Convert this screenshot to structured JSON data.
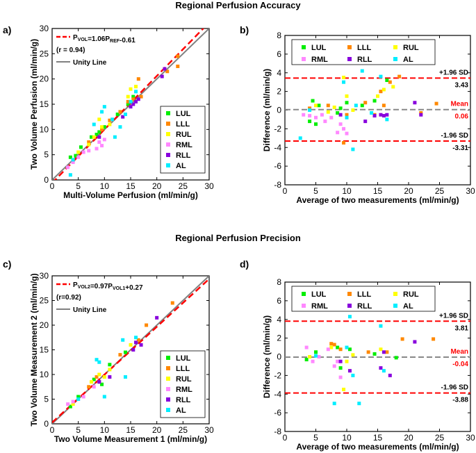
{
  "titles": {
    "accuracy": "Regional Perfusion Accuracy",
    "precision": "Regional Perfusion Precision"
  },
  "colors": {
    "LUL": "#00ee00",
    "LLL": "#ff8800",
    "RUL": "#ffff00",
    "RML": "#ff88ff",
    "RLL": "#8800dd",
    "AL": "#00eeff",
    "fit": "#ff0000",
    "unity": "#808080",
    "mean": "#888888",
    "limit": "#ff0000"
  },
  "chart_data": [
    {
      "id": "a",
      "panel_label": "a)",
      "type": "scatter",
      "xlabel": "Multi-Volume Perfusion (ml/min/g)",
      "ylabel": "Two Volume Perfusion (ml/min/g)",
      "xlim": [
        0,
        30
      ],
      "ylim": [
        0,
        30
      ],
      "xticks": [
        0,
        5,
        10,
        15,
        20,
        25,
        30
      ],
      "yticks": [
        0,
        5,
        10,
        15,
        20,
        25,
        30
      ],
      "fit": {
        "slope": 1.06,
        "intercept": -0.61,
        "label_lead": "P",
        "label_sub1": "VOL",
        "label_mid": "=1.06P",
        "label_sub2": "REF",
        "label_tail": "-0.61",
        "r_label": "(r = 0.94)"
      },
      "unity_label": "Unity Line",
      "legend": [
        "LUL",
        "LLL",
        "RUL",
        "RML",
        "RLL",
        "AL"
      ],
      "series": [
        {
          "name": "LUL",
          "points": [
            [
              3.5,
              4.5
            ],
            [
              4.5,
              4.8
            ],
            [
              5.5,
              6.5
            ],
            [
              7.5,
              8.5
            ],
            [
              8.5,
              9.0
            ],
            [
              9.0,
              9.5
            ],
            [
              10.0,
              10.5
            ],
            [
              12.5,
              13.0
            ],
            [
              14.5,
              15.0
            ],
            [
              15.5,
              16.5
            ]
          ]
        },
        {
          "name": "LLL",
          "points": [
            [
              4.0,
              3.8
            ],
            [
              7.0,
              7.5
            ],
            [
              9.5,
              10.0
            ],
            [
              11.0,
              11.8
            ],
            [
              13.0,
              13.5
            ],
            [
              14.5,
              15.5
            ],
            [
              15.5,
              16.0
            ],
            [
              16.5,
              20.0
            ],
            [
              17.0,
              16.5
            ],
            [
              22.0,
              21.5
            ],
            [
              24.0,
              24.5
            ],
            [
              24.0,
              22.5
            ]
          ]
        },
        {
          "name": "RUL",
          "points": [
            [
              5.0,
              5.5
            ],
            [
              7.0,
              7.0
            ],
            [
              8.0,
              8.5
            ],
            [
              9.0,
              12.0
            ],
            [
              9.5,
              10.5
            ],
            [
              11.0,
              11.0
            ],
            [
              14.5,
              16.5
            ],
            [
              15.0,
              18.0
            ],
            [
              16.0,
              18.5
            ]
          ]
        },
        {
          "name": "RML",
          "points": [
            [
              3.0,
              2.5
            ],
            [
              4.0,
              3.5
            ],
            [
              5.0,
              4.5
            ],
            [
              6.0,
              5.5
            ],
            [
              7.0,
              5.8
            ],
            [
              8.5,
              6.2
            ],
            [
              9.0,
              7.5
            ],
            [
              9.5,
              6.8
            ],
            [
              10.0,
              8.0
            ]
          ]
        },
        {
          "name": "RLL",
          "points": [
            [
              9.0,
              8.5
            ],
            [
              13.5,
              12.5
            ],
            [
              15.0,
              14.5
            ],
            [
              15.5,
              15.0
            ],
            [
              16.0,
              15.5
            ],
            [
              16.5,
              16.0
            ],
            [
              21.0,
              20.5
            ],
            [
              21.5,
              22.0
            ]
          ]
        },
        {
          "name": "AL",
          "points": [
            [
              3.5,
              1.0
            ],
            [
              4.0,
              4.0
            ],
            [
              8.0,
              11.0
            ],
            [
              9.5,
              13.5
            ],
            [
              10.0,
              14.5
            ],
            [
              11.5,
              12.0
            ],
            [
              12.0,
              8.5
            ],
            [
              13.0,
              10.5
            ],
            [
              14.0,
              13.0
            ],
            [
              15.0,
              15.5
            ],
            [
              16.0,
              17.5
            ]
          ]
        }
      ]
    },
    {
      "id": "b",
      "panel_label": "b)",
      "type": "scatter",
      "xlabel": "Average of two measurements (ml/min/g)",
      "ylabel": "Difference (ml/min/g)",
      "xlim": [
        0,
        30
      ],
      "ylim": [
        -8,
        8
      ],
      "xticks": [
        0,
        5,
        10,
        15,
        20,
        25,
        30
      ],
      "yticks": [
        -8,
        -6,
        -4,
        -2,
        0,
        2,
        4,
        6,
        8
      ],
      "mean": 0.06,
      "upper": 3.43,
      "lower": -3.31,
      "upper_label": "+1.96 SD",
      "upper_value": "3.43",
      "mean_label": "Mean",
      "mean_value": "0.06",
      "lower_label": "-1.96 SD",
      "lower_value": "-3.31",
      "legend": [
        "LUL",
        "LLL",
        "RUL",
        "RML",
        "RLL",
        "AL"
      ],
      "series": [
        {
          "name": "LUL",
          "points": [
            [
              4.0,
              -1.2
            ],
            [
              4.5,
              1.0
            ],
            [
              5.0,
              -1.5
            ],
            [
              5.5,
              0.5
            ],
            [
              8.5,
              -0.3
            ],
            [
              9.0,
              0.2
            ],
            [
              10.0,
              0.8
            ],
            [
              12.5,
              0.5
            ],
            [
              14.5,
              1.0
            ],
            [
              16.5,
              3.2
            ]
          ]
        },
        {
          "name": "LLL",
          "points": [
            [
              4.0,
              0.2
            ],
            [
              7.0,
              0.5
            ],
            [
              9.5,
              -3.5
            ],
            [
              10.0,
              -0.5
            ],
            [
              13.0,
              0.8
            ],
            [
              14.5,
              -0.5
            ],
            [
              15.5,
              2.0
            ],
            [
              16.0,
              0.5
            ],
            [
              17.0,
              3.0
            ],
            [
              18.5,
              3.6
            ],
            [
              22.0,
              -0.3
            ],
            [
              24.5,
              0.7
            ]
          ]
        },
        {
          "name": "RUL",
          "points": [
            [
              5.0,
              0.5
            ],
            [
              7.0,
              -0.2
            ],
            [
              8.0,
              0.3
            ],
            [
              9.5,
              3.5
            ],
            [
              10.0,
              1.5
            ],
            [
              11.0,
              0.0
            ],
            [
              15.0,
              1.5
            ],
            [
              16.0,
              2.2
            ],
            [
              17.5,
              2.5
            ]
          ]
        },
        {
          "name": "RML",
          "points": [
            [
              3.0,
              -0.5
            ],
            [
              4.0,
              -0.6
            ],
            [
              5.0,
              -0.8
            ],
            [
              6.0,
              -0.5
            ],
            [
              6.5,
              -1.2
            ],
            [
              7.5,
              -0.8
            ],
            [
              8.5,
              -2.4
            ],
            [
              9.0,
              -1.5
            ],
            [
              9.5,
              -2.0
            ],
            [
              10.0,
              -2.5
            ]
          ]
        },
        {
          "name": "RLL",
          "points": [
            [
              9.0,
              -0.5
            ],
            [
              13.0,
              -1.2
            ],
            [
              14.5,
              -0.6
            ],
            [
              15.5,
              -0.5
            ],
            [
              16.0,
              -0.6
            ],
            [
              16.5,
              -0.5
            ],
            [
              21.0,
              0.8
            ],
            [
              22.0,
              -0.5
            ]
          ]
        },
        {
          "name": "AL",
          "points": [
            [
              2.5,
              -3.0
            ],
            [
              4.0,
              0.0
            ],
            [
              9.5,
              3.0
            ],
            [
              11.0,
              -4.2
            ],
            [
              11.5,
              0.5
            ],
            [
              12.5,
              4.2
            ],
            [
              14.0,
              -0.3
            ],
            [
              15.5,
              3.6
            ],
            [
              16.5,
              -1.0
            ],
            [
              10.0,
              -0.8
            ]
          ]
        }
      ]
    },
    {
      "id": "c",
      "panel_label": "c)",
      "type": "scatter",
      "xlabel": "Two Volume Measurement 1 (ml/min/g)",
      "ylabel": "Two Volume Measurement 2 (ml/min/g)",
      "xlim": [
        0,
        30
      ],
      "ylim": [
        0,
        30
      ],
      "xticks": [
        0,
        5,
        10,
        15,
        20,
        25,
        30
      ],
      "yticks": [
        0,
        5,
        10,
        15,
        20,
        25,
        30
      ],
      "fit": {
        "slope": 0.97,
        "intercept": 0.27,
        "label_lead": "P",
        "label_sub1": "VOL2",
        "label_mid": "=0.97P",
        "label_sub2": "VOL1",
        "label_tail": "+0.27",
        "r_label": "(r=0.92)"
      },
      "unity_label": "Unity Line",
      "legend": [
        "LUL",
        "LLL",
        "RUL",
        "RML",
        "RLL",
        "AL"
      ],
      "series": [
        {
          "name": "LUL",
          "points": [
            [
              3.5,
              3.5
            ],
            [
              5.0,
              5.5
            ],
            [
              8.0,
              9.0
            ],
            [
              9.0,
              8.5
            ],
            [
              9.5,
              8.0
            ],
            [
              11.0,
              12.0
            ],
            [
              14.0,
              14.5
            ]
          ]
        },
        {
          "name": "LLL",
          "points": [
            [
              7.0,
              7.5
            ],
            [
              8.5,
              9.5
            ],
            [
              13.0,
              14.0
            ],
            [
              16.5,
              17.0
            ],
            [
              18.0,
              20.0
            ],
            [
              23.0,
              24.5
            ]
          ]
        },
        {
          "name": "RUL",
          "points": [
            [
              4.0,
              4.0
            ],
            [
              7.5,
              8.5
            ],
            [
              9.0,
              10.0
            ],
            [
              10.0,
              9.5
            ],
            [
              11.0,
              11.0
            ],
            [
              15.0,
              16.0
            ]
          ]
        },
        {
          "name": "RML",
          "points": [
            [
              3.0,
              4.0
            ],
            [
              4.0,
              4.5
            ],
            [
              5.0,
              5.0
            ],
            [
              6.0,
              5.5
            ],
            [
              8.0,
              7.5
            ],
            [
              9.0,
              8.5
            ]
          ]
        },
        {
          "name": "RLL",
          "points": [
            [
              9.0,
              8.5
            ],
            [
              11.0,
              9.5
            ],
            [
              15.5,
              15.0
            ],
            [
              16.0,
              16.5
            ],
            [
              17.0,
              16.0
            ],
            [
              20.0,
              21.5
            ]
          ]
        },
        {
          "name": "AL",
          "points": [
            [
              5.0,
              5.0
            ],
            [
              8.5,
              13.0
            ],
            [
              9.0,
              12.5
            ],
            [
              10.0,
              5.5
            ],
            [
              13.5,
              17.0
            ],
            [
              14.0,
              9.5
            ],
            [
              16.0,
              17.5
            ]
          ]
        }
      ]
    },
    {
      "id": "d",
      "panel_label": "d)",
      "type": "scatter",
      "xlabel": "Average of two measurements (ml/min/g)",
      "ylabel": "Difference (ml/min/g)",
      "xlim": [
        0,
        30
      ],
      "ylim": [
        -8,
        8
      ],
      "xticks": [
        0,
        5,
        10,
        15,
        20,
        25,
        30
      ],
      "yticks": [
        -8,
        -6,
        -4,
        -2,
        0,
        2,
        4,
        6,
        8
      ],
      "mean": -0.04,
      "upper": 3.81,
      "lower": -3.88,
      "upper_label": "+1.96 SD",
      "upper_value": "3.81",
      "mean_label": "Mean",
      "mean_value": "-0.04",
      "lower_label": "-1.96 SD",
      "lower_value": "-3.88",
      "legend": [
        "LUL",
        "LLL",
        "RUL",
        "RML",
        "RLL",
        "AL"
      ],
      "series": [
        {
          "name": "LUL",
          "points": [
            [
              3.5,
              -0.3
            ],
            [
              5.0,
              0.5
            ],
            [
              8.5,
              1.0
            ],
            [
              9.0,
              -1.2
            ],
            [
              10.5,
              0.8
            ],
            [
              14.5,
              0.3
            ],
            [
              18.0,
              -0.1
            ]
          ]
        },
        {
          "name": "LLL",
          "points": [
            [
              7.5,
              1.4
            ],
            [
              8.0,
              1.3
            ],
            [
              9.0,
              0.8
            ],
            [
              13.5,
              0.5
            ],
            [
              16.5,
              0.5
            ],
            [
              19.0,
              1.9
            ],
            [
              24.0,
              1.9
            ]
          ]
        },
        {
          "name": "RUL",
          "points": [
            [
              4.0,
              0.0
            ],
            [
              7.5,
              1.0
            ],
            [
              9.5,
              -3.5
            ],
            [
              10.0,
              -0.5
            ],
            [
              11.0,
              0.2
            ],
            [
              15.5,
              0.8
            ]
          ]
        },
        {
          "name": "RML",
          "points": [
            [
              3.5,
              1.0
            ],
            [
              4.5,
              -0.5
            ],
            [
              5.5,
              0.0
            ],
            [
              7.0,
              0.8
            ],
            [
              8.0,
              -1.0
            ],
            [
              8.5,
              -0.5
            ],
            [
              9.0,
              -2.2
            ]
          ]
        },
        {
          "name": "RLL",
          "points": [
            [
              9.0,
              -0.5
            ],
            [
              10.5,
              -1.5
            ],
            [
              15.5,
              -1.2
            ],
            [
              16.0,
              0.5
            ],
            [
              17.0,
              -2.0
            ],
            [
              21.0,
              1.6
            ]
          ]
        },
        {
          "name": "AL",
          "points": [
            [
              5.0,
              0.1
            ],
            [
              8.0,
              -5.0
            ],
            [
              10.5,
              4.3
            ],
            [
              11.0,
              -2.0
            ],
            [
              12.0,
              -5.0
            ],
            [
              15.5,
              3.3
            ],
            [
              16.0,
              -1.5
            ],
            [
              10.0,
              1.0
            ]
          ]
        }
      ]
    }
  ]
}
